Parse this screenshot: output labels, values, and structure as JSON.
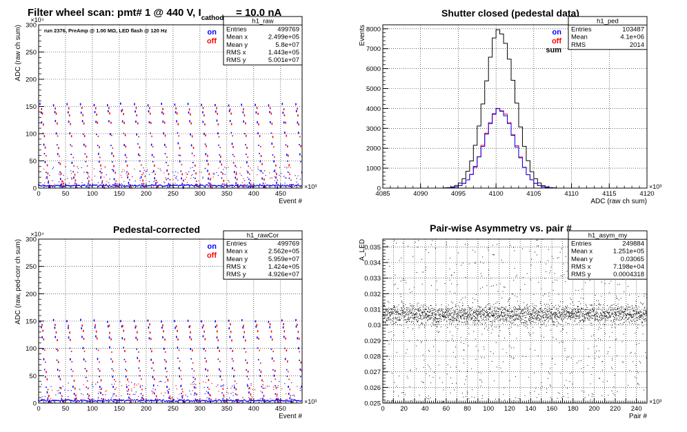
{
  "chart_data": [
    {
      "type": "scatter",
      "title": "Filter wheel scan: pmt#   1 @   440 V, I",
      "title_sub": "cathode",
      "title_tail": "= 10.0 nA",
      "annotation": "run 2376, PreAmp @ 1.00 MΩ, LED flash @  120 Hz",
      "xlabel": "Event #",
      "ylabel": "ADC (raw ch sum)",
      "x_exponent": "×10³",
      "y_exponent": "×10⁴",
      "xlim": [
        0,
        490
      ],
      "ylim": [
        0,
        300
      ],
      "x_ticks": [
        0,
        50,
        100,
        150,
        200,
        250,
        300,
        350,
        400,
        450
      ],
      "y_ticks": [
        0,
        50,
        100,
        150,
        200,
        250,
        300
      ],
      "grid": true,
      "legend": [
        {
          "label": "on",
          "color": "#0000ff"
        },
        {
          "label": "off",
          "color": "#ff0000"
        }
      ],
      "stats": {
        "name": "h1_raw",
        "rows": [
          [
            "Entries",
            "499769"
          ],
          [
            "Mean x",
            "2.499e+05"
          ],
          [
            "Mean y",
            "5.8e+07"
          ],
          [
            "RMS x",
            "1.443e+05"
          ],
          [
            "RMS y",
            "5.001e+07"
          ]
        ]
      },
      "series": [
        {
          "label": "on",
          "color": "#0000ff",
          "levels": [
            153,
            140,
            122,
            100,
            80,
            62,
            48,
            30,
            18,
            8,
            2
          ]
        },
        {
          "label": "off",
          "color": "#ff0000",
          "levels": [
            145,
            135,
            118,
            95,
            75,
            58,
            42,
            26,
            14,
            6,
            1
          ]
        }
      ],
      "period": 25
    },
    {
      "type": "histogram",
      "title": "Shutter closed (pedestal data)",
      "xlabel": "ADC (raw ch sum)",
      "ylabel": "Events",
      "x_exponent": "×10³",
      "xlim": [
        4085,
        4120
      ],
      "ylim": [
        0,
        8200
      ],
      "x_ticks": [
        4085,
        4090,
        4095,
        4100,
        4105,
        4110,
        4115,
        4120
      ],
      "y_ticks": [
        0,
        1000,
        2000,
        3000,
        4000,
        5000,
        6000,
        7000,
        8000
      ],
      "grid": true,
      "legend": [
        {
          "label": "on",
          "color": "#0000ff"
        },
        {
          "label": "off",
          "color": "#ff0000"
        },
        {
          "label": "sum",
          "color": "#000000"
        }
      ],
      "stats": {
        "name": "h1_ped",
        "rows": [
          [
            "Entries",
            "103487"
          ],
          [
            "Mean",
            "4.1e+06"
          ],
          [
            "RMS",
            "2014"
          ]
        ]
      },
      "peak": {
        "mean": 4100.5,
        "sigma": 2.0,
        "sum_peak": 7950,
        "half_peak": 3975
      }
    },
    {
      "type": "scatter",
      "title": "Pedestal-corrected",
      "xlabel": "Event #",
      "ylabel": "ADC (raw, ped-corr ch sum)",
      "x_exponent": "×10³",
      "y_exponent": "×10⁴",
      "xlim": [
        0,
        490
      ],
      "ylim": [
        0,
        300
      ],
      "x_ticks": [
        0,
        50,
        100,
        150,
        200,
        250,
        300,
        350,
        400,
        450
      ],
      "y_ticks": [
        0,
        50,
        100,
        150,
        200,
        250,
        300
      ],
      "grid": true,
      "legend": [
        {
          "label": "on",
          "color": "#0000ff"
        },
        {
          "label": "off",
          "color": "#ff0000"
        }
      ],
      "stats": {
        "name": "h1_rawCor",
        "rows": [
          [
            "Entries",
            "499769"
          ],
          [
            "Mean x",
            "2.562e+05"
          ],
          [
            "Mean y",
            "5.959e+07"
          ],
          [
            "RMS x",
            "1.424e+05"
          ],
          [
            "RMS y",
            "4.926e+07"
          ]
        ]
      },
      "series": [
        {
          "label": "on",
          "color": "#0000ff",
          "levels": [
            150,
            138,
            120,
            100,
            80,
            62,
            48,
            30,
            18,
            8,
            1
          ]
        },
        {
          "label": "off",
          "color": "#ff0000",
          "levels": [
            142,
            130,
            116,
            95,
            75,
            58,
            42,
            26,
            14,
            6,
            1
          ]
        }
      ],
      "period": 25
    },
    {
      "type": "scatter",
      "title": "Pair-wise Asymmetry vs. pair #",
      "xlabel": "Pair #",
      "ylabel": "A_LED",
      "x_exponent": "×10³",
      "xlim": [
        0,
        250
      ],
      "ylim": [
        0.025,
        0.0355
      ],
      "x_ticks": [
        0,
        10,
        20,
        30,
        40,
        50,
        60,
        70,
        80,
        90,
        100,
        110,
        120,
        130,
        140,
        150,
        160,
        170,
        180,
        190,
        200,
        210,
        220,
        230,
        240
      ],
      "x_tick_labels": [
        0,
        20,
        40,
        60,
        80,
        100,
        120,
        140,
        160,
        180,
        200,
        220,
        240
      ],
      "y_ticks": [
        0.025,
        0.026,
        0.027,
        0.028,
        0.029,
        0.03,
        0.031,
        0.032,
        0.033,
        0.034,
        0.035
      ],
      "grid": true,
      "stats": {
        "name": "h1_asym_my",
        "rows": [
          [
            "Entries",
            "249884"
          ],
          [
            "Mean x",
            "1.251e+05"
          ],
          [
            "Mean y",
            "0.03065"
          ],
          [
            "RMS x",
            "7.198e+04"
          ],
          [
            "RMS y",
            "0.0004318"
          ]
        ]
      },
      "band": {
        "center": 0.03065,
        "halfwidth": 0.0005
      }
    }
  ]
}
